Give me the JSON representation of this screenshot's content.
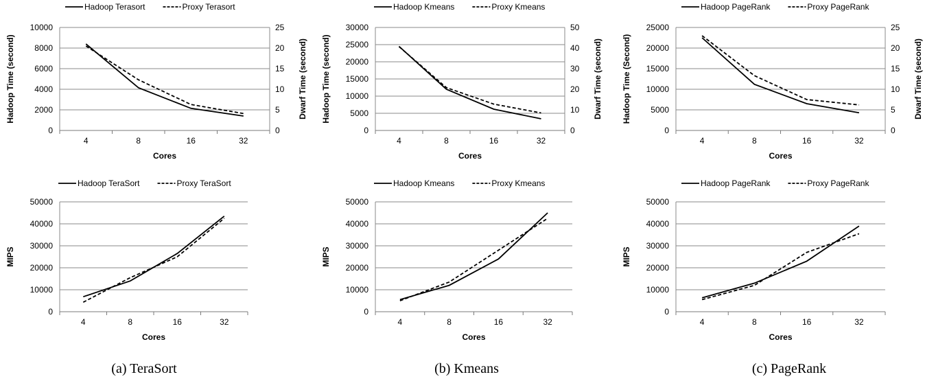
{
  "chart_data": [
    {
      "type": "line",
      "x_categories": [
        "4",
        "8",
        "16",
        "32"
      ],
      "xlabel": "Cores",
      "ylabel": "Hadoop Time (second)",
      "ylabel_right": "Dwarf Time (second)",
      "ylim": [
        0,
        10000
      ],
      "y_ticks": [
        "0",
        "2000",
        "4000",
        "6000",
        "8000",
        "10000"
      ],
      "ylim_right": [
        0,
        25
      ],
      "y_ticks_right": [
        "0",
        "5",
        "10",
        "15",
        "20",
        "25"
      ],
      "grid": true,
      "legend_position": "top",
      "series": [
        {
          "name": "Hadoop Terasort",
          "axis": "left",
          "style": "solid",
          "values": [
            8400,
            4150,
            2150,
            1400
          ]
        },
        {
          "name": "Proxy Terasort",
          "axis": "right",
          "style": "dashed",
          "values": [
            20.5,
            12.3,
            6.3,
            4.1
          ]
        }
      ]
    },
    {
      "type": "line",
      "x_categories": [
        "4",
        "8",
        "16",
        "32"
      ],
      "xlabel": "Cores",
      "ylabel": "Hadoop Time (second)",
      "ylabel_right": "Dwarf Time (second)",
      "ylim": [
        0,
        30000
      ],
      "y_ticks": [
        "0",
        "5000",
        "10000",
        "15000",
        "20000",
        "25000",
        "30000"
      ],
      "ylim_right": [
        0,
        50
      ],
      "y_ticks_right": [
        "0",
        "10",
        "20",
        "30",
        "40",
        "50"
      ],
      "grid": true,
      "legend_position": "top",
      "series": [
        {
          "name": "Hadoop Kmeans",
          "axis": "left",
          "style": "solid",
          "values": [
            24500,
            12000,
            6200,
            3400
          ]
        },
        {
          "name": "Proxy Kmeans",
          "axis": "right",
          "style": "dashed",
          "values": [
            40.7,
            20.8,
            12.8,
            8.5
          ]
        }
      ]
    },
    {
      "type": "line",
      "x_categories": [
        "4",
        "8",
        "16",
        "32"
      ],
      "xlabel": "Cores",
      "ylabel": "Hadoop Time (Second)",
      "ylabel_right": "Dwarf Time (second)",
      "ylim": [
        0,
        25000
      ],
      "y_ticks": [
        "0",
        "5000",
        "10000",
        "15000",
        "20000",
        "25000"
      ],
      "ylim_right": [
        0,
        25
      ],
      "y_ticks_right": [
        "0",
        "5",
        "10",
        "15",
        "20",
        "25"
      ],
      "grid": true,
      "legend_position": "top",
      "series": [
        {
          "name": "Hadoop PageRank",
          "axis": "left",
          "style": "solid",
          "values": [
            22500,
            11200,
            6500,
            4300
          ]
        },
        {
          "name": "Proxy PageRank",
          "axis": "right",
          "style": "dashed",
          "values": [
            23.0,
            13.3,
            7.5,
            6.2
          ]
        }
      ]
    },
    {
      "type": "line",
      "x_categories": [
        "4",
        "8",
        "16",
        "32"
      ],
      "xlabel": "Cores",
      "ylabel": "MIPS",
      "ylim": [
        0,
        50000
      ],
      "y_ticks": [
        "0",
        "10000",
        "20000",
        "30000",
        "40000",
        "50000"
      ],
      "grid": true,
      "legend_position": "top",
      "series": [
        {
          "name": "Hadoop TeraSort",
          "axis": "left",
          "style": "solid",
          "values": [
            6800,
            14000,
            26500,
            43500
          ]
        },
        {
          "name": "Proxy TeraSort",
          "axis": "left",
          "style": "dashed",
          "values": [
            4300,
            15500,
            25000,
            42500
          ]
        }
      ]
    },
    {
      "type": "line",
      "x_categories": [
        "4",
        "8",
        "16",
        "32"
      ],
      "xlabel": "Cores",
      "ylabel": "MIPS",
      "ylim": [
        0,
        50000
      ],
      "y_ticks": [
        "0",
        "10000",
        "20000",
        "30000",
        "40000",
        "50000"
      ],
      "grid": true,
      "legend_position": "top",
      "series": [
        {
          "name": "Hadoop Kmeans",
          "axis": "left",
          "style": "solid",
          "values": [
            5500,
            12000,
            24000,
            45000
          ]
        },
        {
          "name": "Proxy Kmeans",
          "axis": "left",
          "style": "dashed",
          "values": [
            5000,
            13500,
            28000,
            42500
          ]
        }
      ]
    },
    {
      "type": "line",
      "x_categories": [
        "4",
        "8",
        "16",
        "32"
      ],
      "xlabel": "Cores",
      "ylabel": "MIPS",
      "ylim": [
        0,
        50000
      ],
      "y_ticks": [
        "0",
        "10000",
        "20000",
        "30000",
        "40000",
        "50000"
      ],
      "grid": true,
      "legend_position": "top",
      "series": [
        {
          "name": "Hadoop PageRank",
          "axis": "left",
          "style": "solid",
          "values": [
            6300,
            13000,
            23000,
            39000
          ]
        },
        {
          "name": "Proxy PageRank",
          "axis": "left",
          "style": "dashed",
          "values": [
            5500,
            12000,
            27000,
            35500
          ]
        }
      ]
    }
  ],
  "captions": [
    "(a) TeraSort",
    "(b) Kmeans",
    "(c) PageRank"
  ]
}
